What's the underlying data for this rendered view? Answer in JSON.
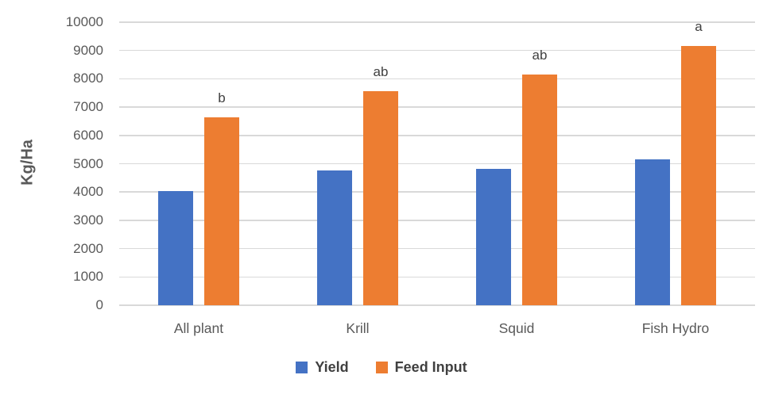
{
  "chart_data": {
    "type": "bar",
    "title": "",
    "xlabel": "",
    "ylabel": "Kg/Ha",
    "ylim": [
      0,
      10000
    ],
    "yticks": [
      0,
      1000,
      2000,
      3000,
      4000,
      5000,
      6000,
      7000,
      8000,
      9000,
      10000
    ],
    "grid": true,
    "legend_position": "bottom",
    "categories": [
      "All plant",
      "Krill",
      "Squid",
      "Fish Hydro"
    ],
    "series": [
      {
        "name": "Yield",
        "color": "#4472C4",
        "values": [
          4030,
          4760,
          4830,
          5150
        ]
      },
      {
        "name": "Feed Input",
        "color": "#ED7D31",
        "values": [
          6640,
          7550,
          8150,
          9150
        ]
      }
    ],
    "annotations": [
      {
        "category": "All plant",
        "series": "Feed Input",
        "text": "b"
      },
      {
        "category": "Krill",
        "series": "Feed Input",
        "text": "ab"
      },
      {
        "category": "Squid",
        "series": "Feed Input",
        "text": "ab"
      },
      {
        "category": "Fish Hydro",
        "series": "Feed Input",
        "text": "a"
      }
    ],
    "colors": {
      "gridline": "#D9D9D9",
      "axis_text": "#595959",
      "annotation_text": "#404040",
      "legend_text": "#404040",
      "background": "#FFFFFF"
    }
  }
}
